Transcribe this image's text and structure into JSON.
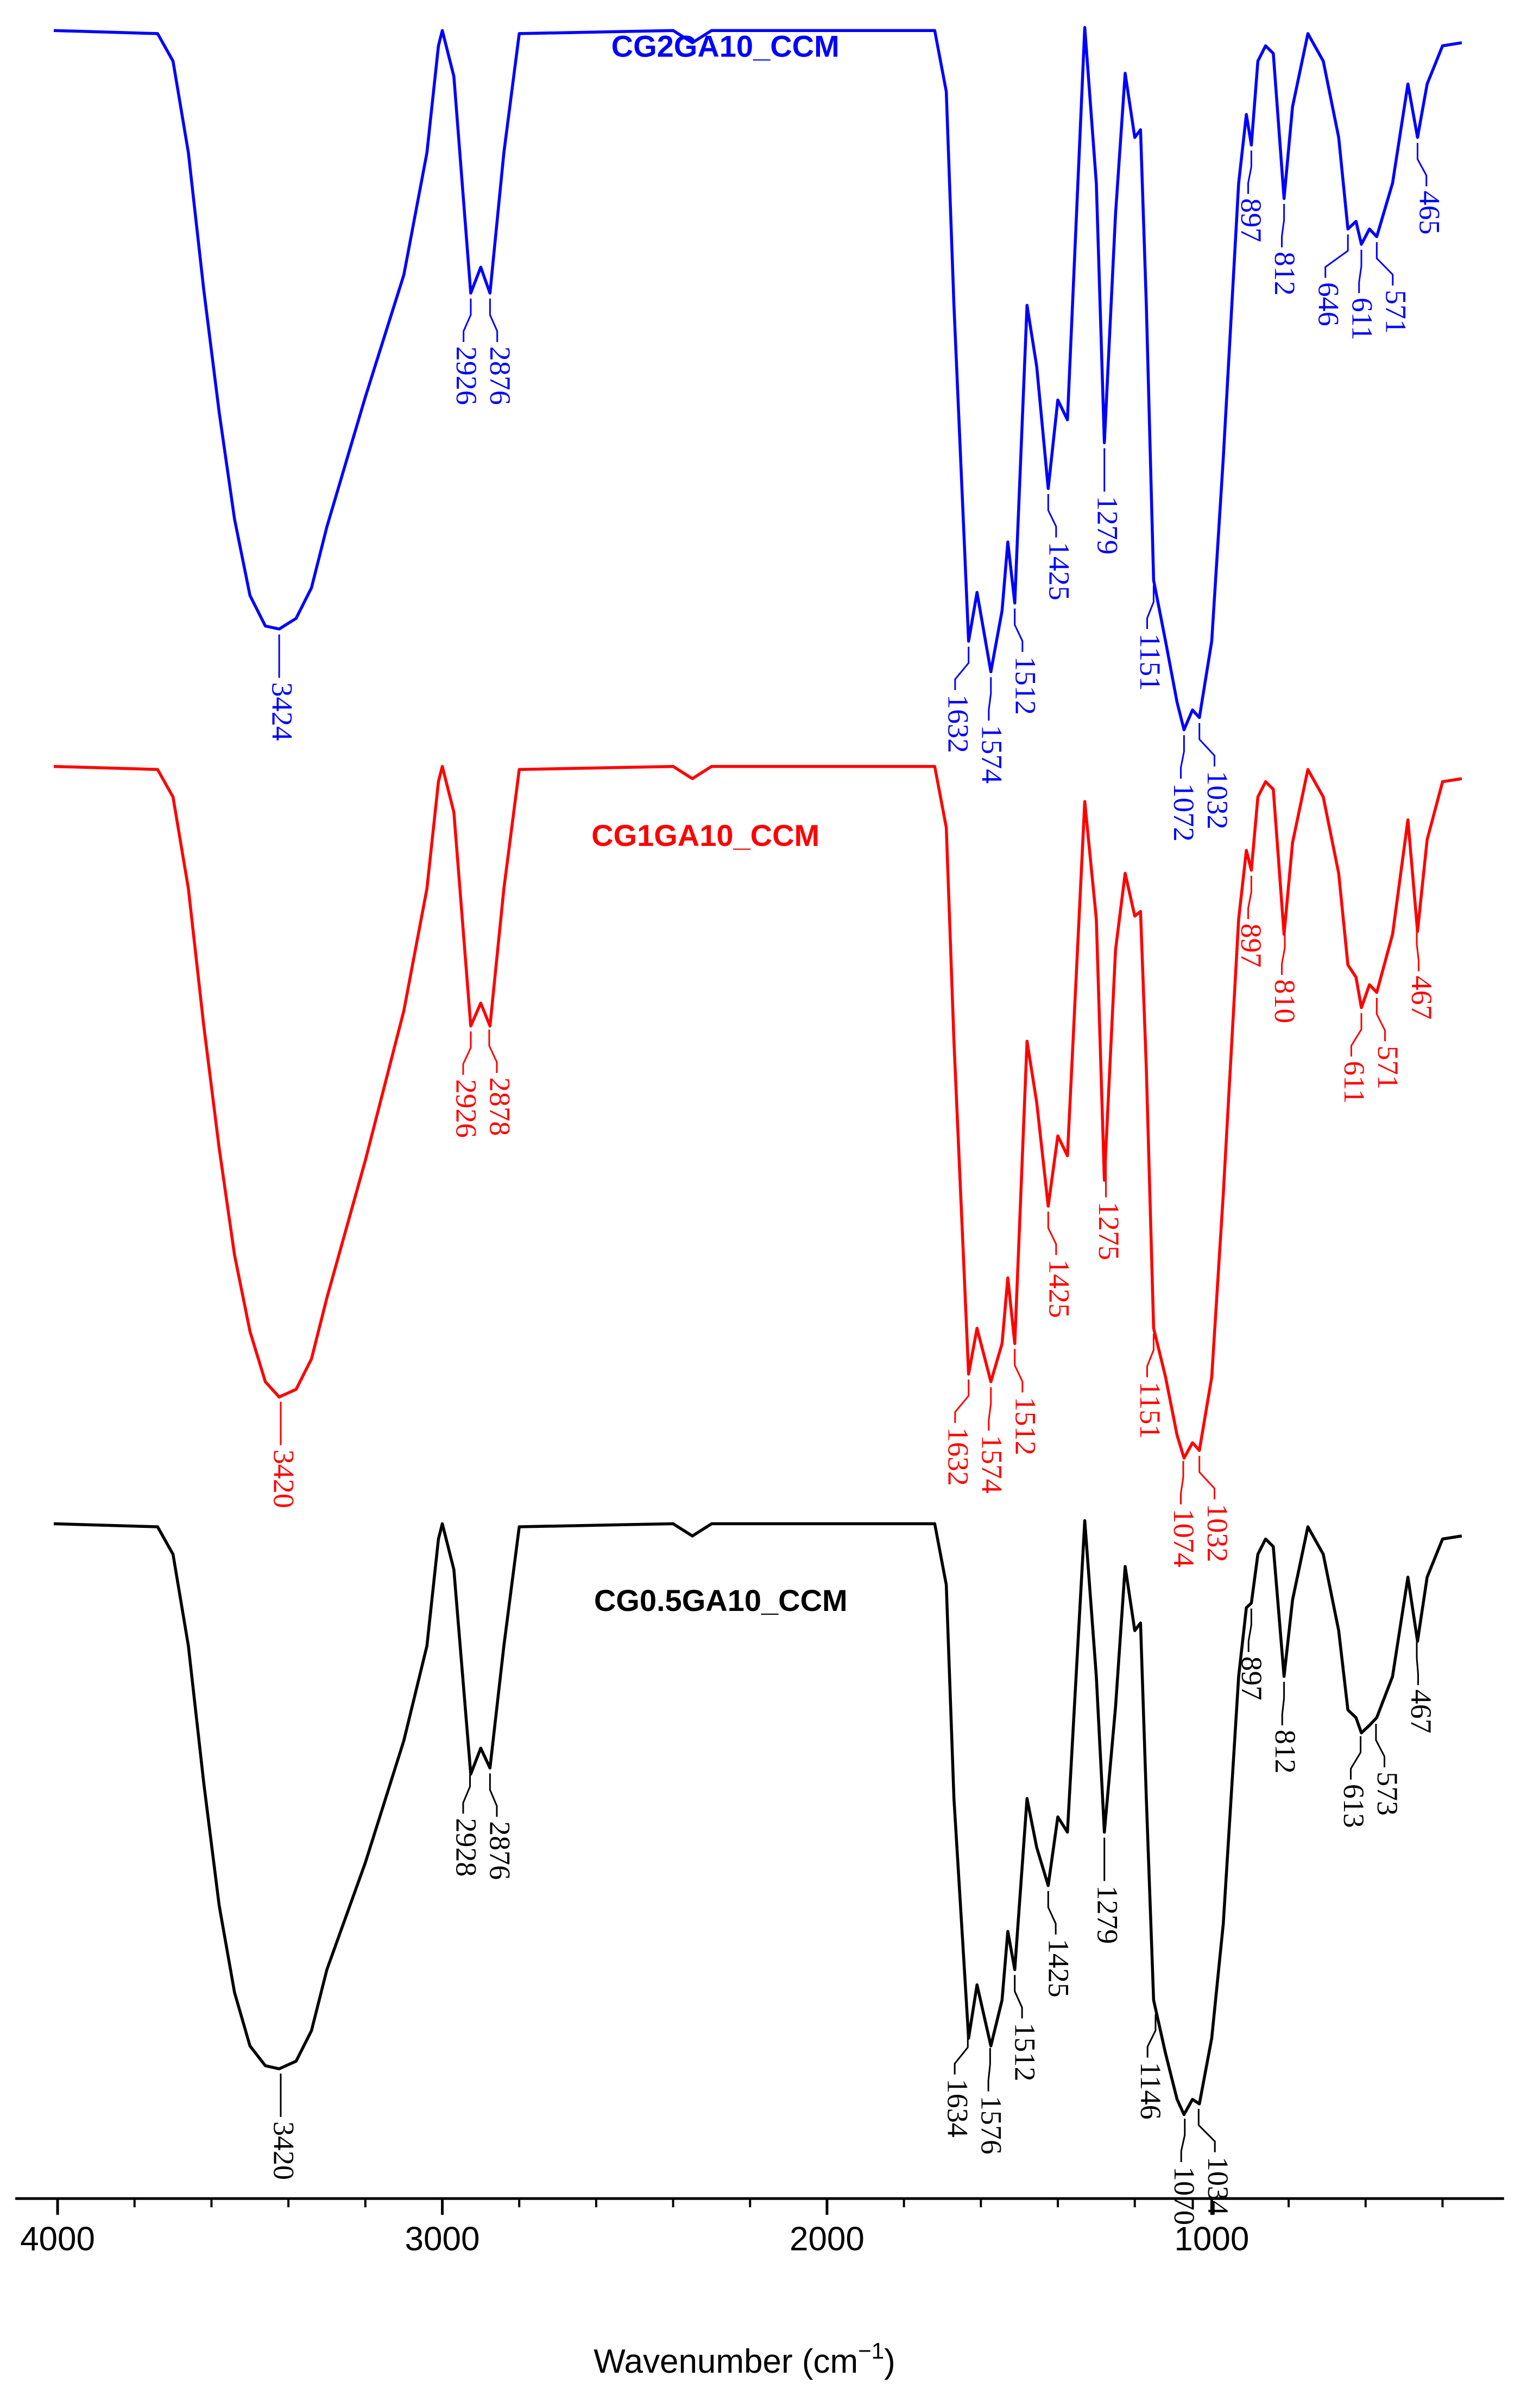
{
  "chart_data": {
    "type": "line",
    "xlabel": {
      "text": "Wavenumber (cm",
      "sup": "−1",
      "end": ")"
    },
    "xlim": [
      4110,
      240
    ],
    "ylim": [
      0,
      144
    ],
    "xticks": [
      4000,
      3000,
      2000,
      1000
    ],
    "xminorticks": [
      3800,
      3600,
      3400,
      3200,
      2800,
      2600,
      2400,
      2200,
      1800,
      1600,
      1400,
      1200,
      800,
      600,
      400
    ],
    "x": [
      4010,
      3740,
      3700,
      3660,
      3620,
      3580,
      3540,
      3500,
      3460,
      3424,
      3380,
      3340,
      3300,
      3200,
      3100,
      3040,
      3010,
      3000,
      2970,
      2926,
      2900,
      2876,
      2840,
      2800,
      2400,
      2350,
      2300,
      1720,
      1690,
      1670,
      1632,
      1610,
      1574,
      1545,
      1530,
      1512,
      1480,
      1455,
      1425,
      1400,
      1375,
      1330,
      1300,
      1279,
      1250,
      1225,
      1200,
      1185,
      1170,
      1151,
      1120,
      1090,
      1072,
      1050,
      1032,
      1000,
      970,
      930,
      910,
      897,
      880,
      860,
      840,
      812,
      790,
      750,
      710,
      670,
      646,
      625,
      611,
      590,
      571,
      530,
      490,
      465,
      440,
      400,
      350
    ],
    "series": [
      {
        "name": "CG2GA10_CCM",
        "color": "#0000ff",
        "values": [
          142,
          141.8,
          140,
          134,
          125,
          117,
          110,
          105,
          103,
          102.8,
          103.5,
          105.5,
          109.5,
          118,
          126,
          134,
          141,
          142,
          139,
          124.8,
          126.5,
          124.8,
          134,
          141.8,
          142,
          141.2,
          142,
          142,
          138,
          124,
          102,
          105.2,
          100,
          104,
          108.5,
          104.5,
          124,
          120,
          112,
          117.8,
          116.5,
          142.2,
          132,
          115,
          130,
          139.2,
          135,
          135.5,
          124,
          106,
          102,
          98,
          96.2,
          97.5,
          97,
          102,
          114,
          132,
          136.5,
          134.5,
          140,
          141,
          140.5,
          131,
          137,
          141.8,
          140,
          135,
          129,
          129.5,
          128,
          129,
          128.5,
          132,
          138.5,
          135,
          138.5,
          141,
          141.2
        ],
        "peaks": [
          3424,
          2926,
          2876,
          1632,
          1574,
          1512,
          1425,
          1279,
          1151,
          1072,
          1032,
          897,
          812,
          646,
          611,
          571,
          465
        ]
      },
      {
        "name": "CG1GA10_CCM",
        "color": "#ff0000",
        "values": [
          93.8,
          93.6,
          91.8,
          85.8,
          76.8,
          68.8,
          61.8,
          56.8,
          53.5,
          52.5,
          53,
          55,
          59,
          68,
          77.8,
          85.8,
          92.8,
          93.8,
          90.8,
          76.8,
          78.3,
          76.8,
          85.8,
          93.6,
          93.8,
          93,
          93.8,
          93.8,
          89.8,
          75.8,
          54,
          57,
          53.5,
          56,
          60.3,
          56,
          75.8,
          71.8,
          65,
          69.6,
          68.3,
          91.5,
          83.8,
          66.7,
          81.8,
          86.8,
          84,
          84.3,
          74,
          57,
          53.8,
          50,
          48.5,
          49.5,
          49,
          53.8,
          65.8,
          83.8,
          88.3,
          87,
          91.8,
          92.8,
          92.3,
          82.8,
          88.8,
          93.6,
          91.8,
          86.8,
          80.8,
          80,
          78,
          79.5,
          79,
          82.8,
          90.3,
          83,
          89,
          92.8,
          93
        ],
        "peaks": [
          3420,
          2926,
          2878,
          1632,
          1574,
          1512,
          1425,
          1275,
          1151,
          1074,
          1032,
          897,
          810,
          611,
          571,
          467
        ]
      },
      {
        "name": "CG0.5GA10_CCM",
        "color": "#000000",
        "values": [
          44.2,
          44,
          42.2,
          36.2,
          27.2,
          19.2,
          13.5,
          10,
          8.7,
          8.5,
          9,
          11,
          15,
          22,
          30,
          36.2,
          43.2,
          44.2,
          41.2,
          27.8,
          29.5,
          28.2,
          36.2,
          44,
          44.2,
          43.4,
          44.2,
          44.2,
          40.2,
          26.2,
          10.5,
          14,
          10,
          13,
          17.5,
          15,
          26.2,
          23,
          20.5,
          25,
          24,
          44.4,
          34.2,
          24,
          32.2,
          41.4,
          37.2,
          37.7,
          26.2,
          13,
          9.5,
          6.5,
          5.5,
          6.5,
          6.2,
          10.5,
          18,
          34.2,
          38.7,
          39,
          42.2,
          43.2,
          42.7,
          34.2,
          39.2,
          44,
          42.2,
          37.2,
          32,
          31.5,
          30.5,
          31,
          31.5,
          34.2,
          40.7,
          36.5,
          40.7,
          43.2,
          43.4
        ],
        "peaks": [
          3420,
          2928,
          2876,
          1634,
          1576,
          1512,
          1425,
          1279,
          1146,
          1070,
          1034,
          897,
          812,
          613,
          573,
          467
        ]
      }
    ]
  }
}
